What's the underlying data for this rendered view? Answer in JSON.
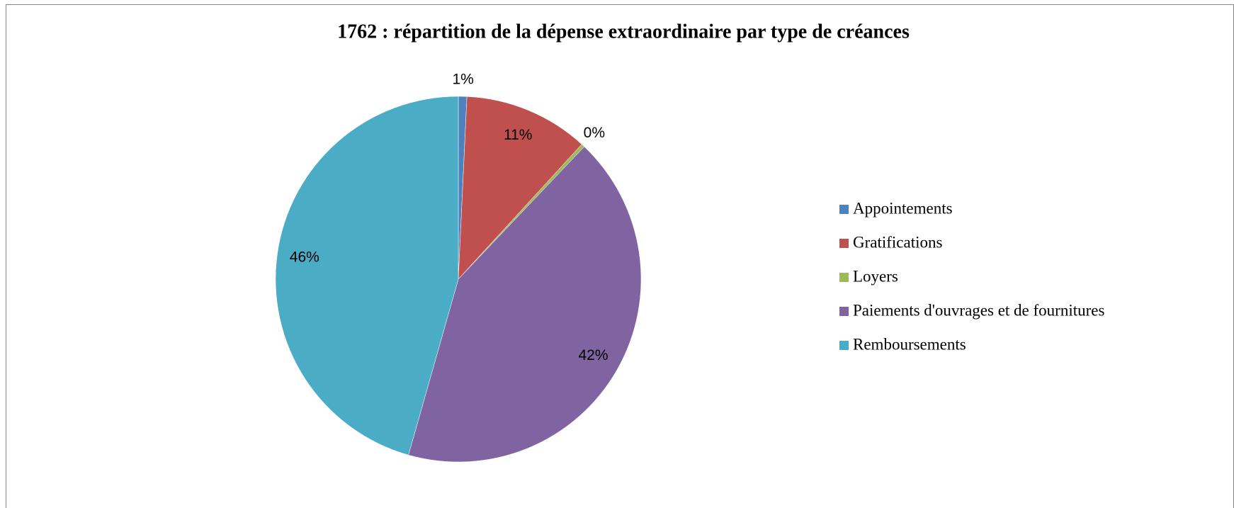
{
  "chart_data": {
    "type": "pie",
    "title": "1762 : répartition de la dépense extraordinaire par type de créances",
    "categories": [
      "Appointements",
      "Gratifications",
      "Loyers",
      "Paiements d'ouvrages et de fournitures",
      "Remboursements"
    ],
    "values": [
      0.75,
      11.05,
      0.3,
      42.3,
      45.6
    ],
    "value_labels": [
      "1%",
      "11%",
      "0%",
      "42%",
      "46%"
    ],
    "colors": [
      "#4f81bd",
      "#c0504d",
      "#9bbb59",
      "#8064a2",
      "#4bacc6"
    ],
    "legend": "right"
  }
}
